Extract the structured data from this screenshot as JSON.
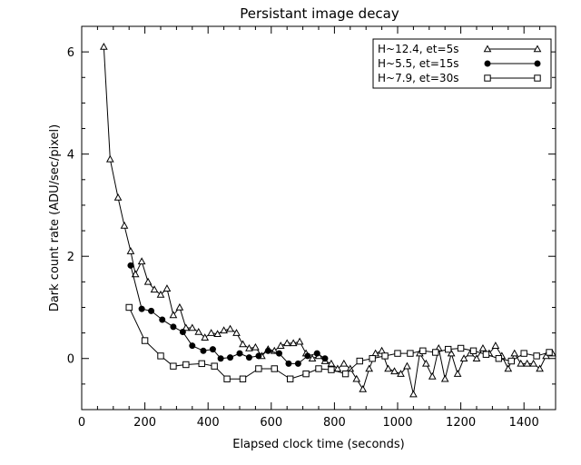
{
  "chart_data": {
    "type": "line",
    "title": "Persistant image decay",
    "xlabel": "Elapsed clock time (seconds)",
    "ylabel": "Dark count rate (ADU/sec/pixel)",
    "xlim": [
      0,
      1500
    ],
    "ylim": [
      -1,
      6.5
    ],
    "xticks": [
      0,
      200,
      400,
      600,
      800,
      1000,
      1200,
      1400
    ],
    "yticks": [
      0,
      2,
      4,
      6
    ],
    "grid": false,
    "legend_position": "top-right",
    "series": [
      {
        "name": "H~12.4, et=5s",
        "marker": "triangle-open",
        "x": [
          70,
          90,
          115,
          135,
          155,
          170,
          190,
          210,
          230,
          250,
          270,
          290,
          310,
          330,
          350,
          370,
          390,
          410,
          430,
          450,
          470,
          490,
          510,
          530,
          550,
          570,
          590,
          610,
          630,
          650,
          670,
          690,
          710,
          730,
          750,
          770,
          790,
          810,
          830,
          850,
          870,
          890,
          910,
          930,
          950,
          970,
          990,
          1010,
          1030,
          1050,
          1070,
          1090,
          1110,
          1130,
          1150,
          1170,
          1190,
          1210,
          1230,
          1250,
          1270,
          1290,
          1310,
          1330,
          1350,
          1370,
          1390,
          1410,
          1430,
          1450,
          1470,
          1490
        ],
        "y": [
          6.1,
          3.9,
          3.15,
          2.6,
          2.1,
          1.65,
          1.9,
          1.5,
          1.35,
          1.25,
          1.37,
          0.85,
          1.0,
          0.6,
          0.6,
          0.52,
          0.41,
          0.5,
          0.48,
          0.55,
          0.58,
          0.5,
          0.28,
          0.2,
          0.22,
          0.05,
          0.18,
          0.15,
          0.25,
          0.3,
          0.3,
          0.33,
          0.1,
          0.0,
          0.05,
          -0.05,
          -0.1,
          -0.2,
          -0.1,
          -0.2,
          -0.4,
          -0.6,
          -0.2,
          0.1,
          0.15,
          -0.2,
          -0.25,
          -0.3,
          -0.15,
          -0.7,
          0.1,
          -0.1,
          -0.35,
          0.2,
          -0.4,
          0.1,
          -0.3,
          0.0,
          0.1,
          0.0,
          0.2,
          0.1,
          0.25,
          0.05,
          -0.2,
          0.1,
          -0.1,
          -0.1,
          -0.1,
          -0.2,
          0.05,
          0.1
        ]
      },
      {
        "name": "H~5.5, et=15s",
        "marker": "circle-filled",
        "x": [
          155,
          190,
          220,
          255,
          290,
          320,
          350,
          385,
          415,
          440,
          470,
          500,
          530,
          560,
          590,
          625,
          655,
          685,
          715,
          745,
          770
        ],
        "y": [
          1.82,
          0.97,
          0.93,
          0.76,
          0.62,
          0.52,
          0.25,
          0.15,
          0.18,
          0.0,
          0.02,
          0.1,
          0.02,
          0.05,
          0.15,
          0.1,
          -0.1,
          -0.1,
          0.05,
          0.1,
          0.0
        ]
      },
      {
        "name": "H~7.9, et=30s",
        "marker": "square-open",
        "x": [
          150,
          200,
          250,
          290,
          330,
          380,
          420,
          460,
          510,
          560,
          610,
          660,
          710,
          750,
          790,
          835,
          880,
          920,
          960,
          1000,
          1040,
          1080,
          1120,
          1160,
          1200,
          1240,
          1280,
          1320,
          1360,
          1400,
          1440,
          1480
        ],
        "y": [
          1.0,
          0.35,
          0.05,
          -0.15,
          -0.12,
          -0.1,
          -0.15,
          -0.4,
          -0.4,
          -0.2,
          -0.2,
          -0.4,
          -0.3,
          -0.2,
          -0.22,
          -0.3,
          -0.05,
          0.0,
          0.05,
          0.1,
          0.1,
          0.15,
          0.12,
          0.18,
          0.2,
          0.15,
          0.08,
          0.0,
          -0.05,
          0.1,
          0.05,
          0.12
        ]
      }
    ]
  }
}
